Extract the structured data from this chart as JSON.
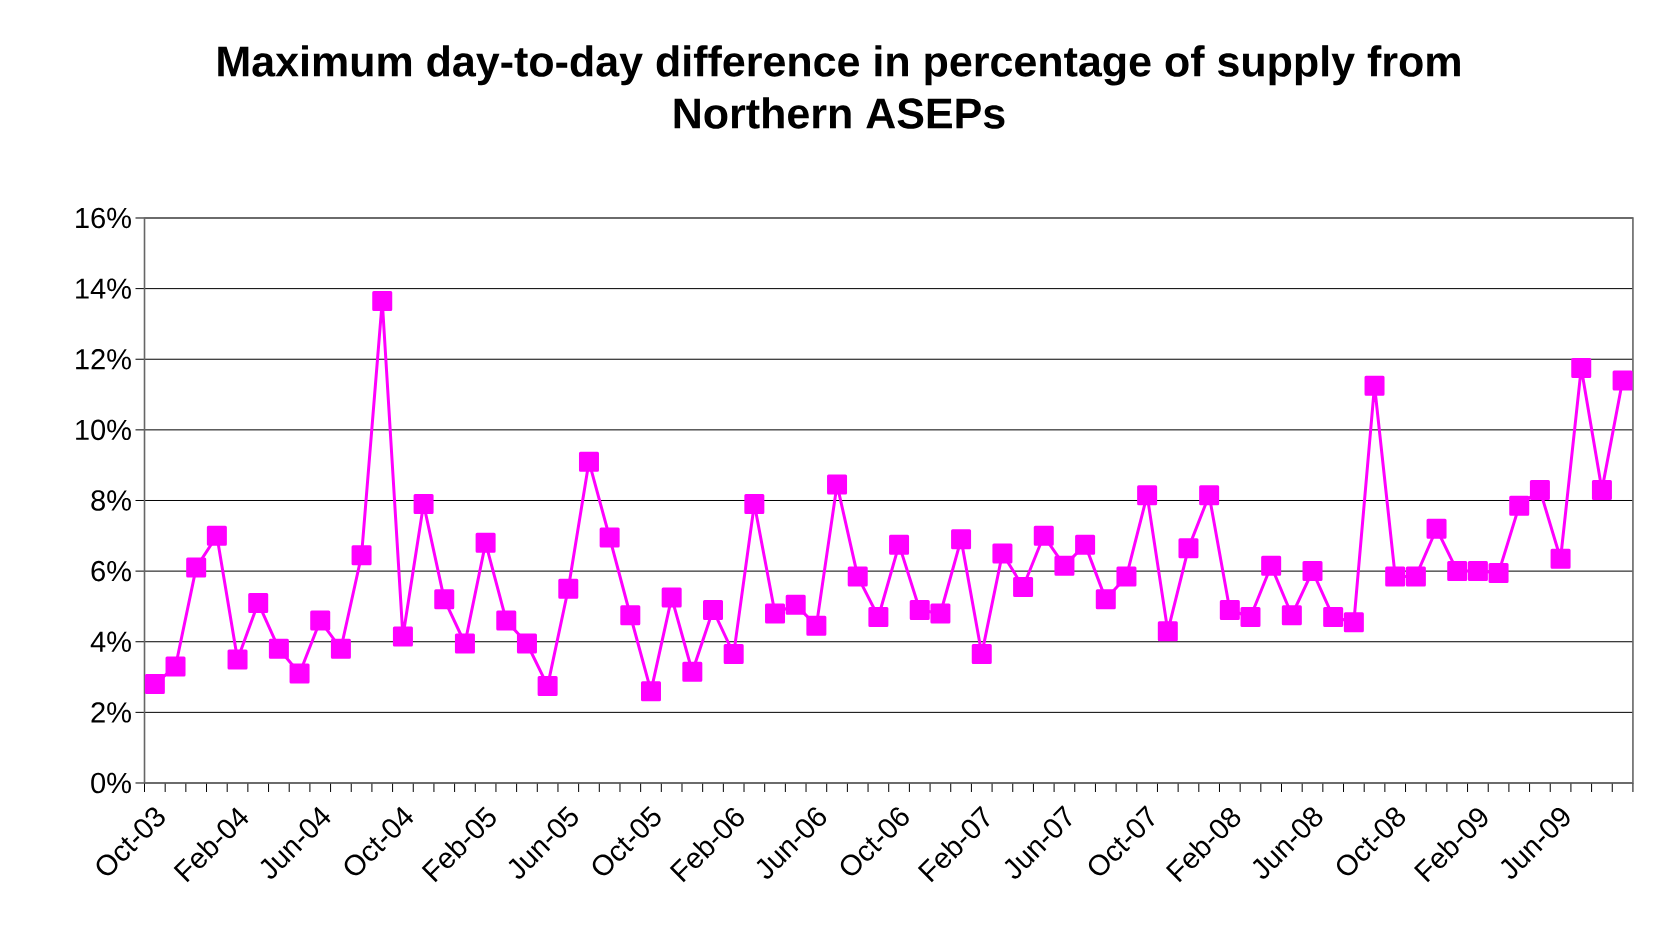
{
  "chart_data": {
    "type": "line",
    "title": "Maximum day-to-day difference in percentage of supply from Northern ASEPs",
    "categories": [
      "Oct-03",
      null,
      null,
      null,
      "Feb-04",
      null,
      null,
      null,
      "Jun-04",
      null,
      null,
      null,
      "Oct-04",
      null,
      null,
      null,
      "Feb-05",
      null,
      null,
      null,
      "Jun-05",
      null,
      null,
      null,
      "Oct-05",
      null,
      null,
      null,
      "Feb-06",
      null,
      null,
      null,
      "Jun-06",
      null,
      null,
      null,
      "Oct-06",
      null,
      null,
      null,
      "Feb-07",
      null,
      null,
      null,
      "Jun-07",
      null,
      null,
      null,
      "Oct-07",
      null,
      null,
      null,
      "Feb-08",
      null,
      null,
      null,
      "Jun-08",
      null,
      null,
      null,
      "Oct-08",
      null,
      null,
      null,
      "Feb-09",
      null,
      null,
      null,
      "Jun-09",
      null,
      null,
      null
    ],
    "series": [
      {
        "color": "#ff00ff",
        "values": [
          2.8,
          3.3,
          6.1,
          7.0,
          3.5,
          5.1,
          3.8,
          3.1,
          4.6,
          3.8,
          6.45,
          13.65,
          4.15,
          7.9,
          5.2,
          3.95,
          6.8,
          4.6,
          3.95,
          2.75,
          5.5,
          9.1,
          6.95,
          4.75,
          2.6,
          5.25,
          3.15,
          4.9,
          3.65,
          7.9,
          4.8,
          5.05,
          4.45,
          8.45,
          5.85,
          4.7,
          6.75,
          4.9,
          4.8,
          6.9,
          3.65,
          6.5,
          5.55,
          7.0,
          6.15,
          6.75,
          5.2,
          5.85,
          8.15,
          4.3,
          6.65,
          8.15,
          4.9,
          4.7,
          6.15,
          4.75,
          6.0,
          4.7,
          4.55,
          11.25,
          5.85,
          5.85,
          7.2,
          6.0,
          6.0,
          5.95,
          7.85,
          8.3,
          6.35,
          11.75,
          8.3,
          11.4
        ]
      }
    ],
    "ylim": [
      0,
      16
    ],
    "yticks": [
      {
        "value": 0,
        "label": "0%"
      },
      {
        "value": 2,
        "label": "2%"
      },
      {
        "value": 4,
        "label": "4%"
      },
      {
        "value": 6,
        "label": "6%"
      },
      {
        "value": 8,
        "label": "8%"
      },
      {
        "value": 10,
        "label": "10%"
      },
      {
        "value": 12,
        "label": "12%"
      },
      {
        "value": 14,
        "label": "14%"
      },
      {
        "value": 16,
        "label": "16%"
      }
    ],
    "grid": "y",
    "marker": "square",
    "line_style": "solid"
  }
}
